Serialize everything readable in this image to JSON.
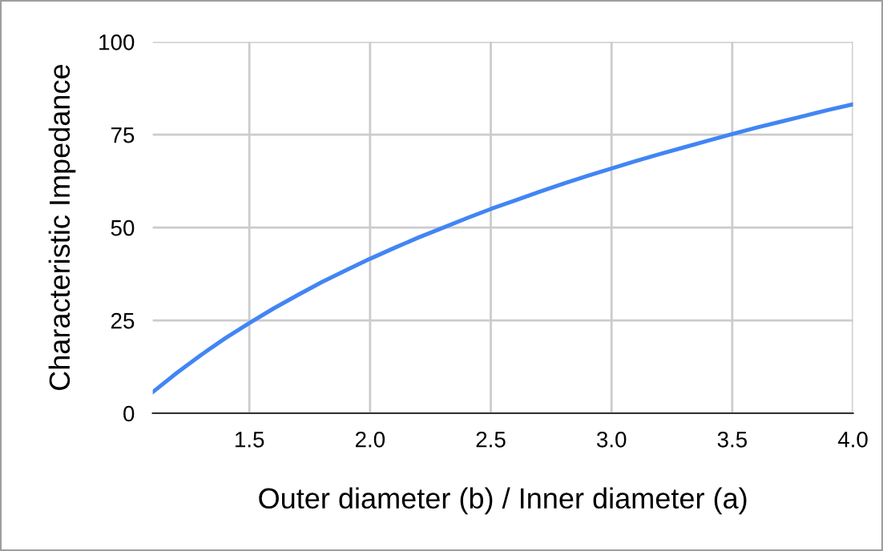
{
  "chart_data": {
    "type": "line",
    "xlabel": "Outer diameter (b) / Inner diameter (a)",
    "ylabel": "Characteristic Impedance",
    "x": [
      1.1,
      1.2,
      1.3,
      1.4,
      1.5,
      1.6,
      1.7,
      1.8,
      1.9,
      2.0,
      2.1,
      2.2,
      2.3,
      2.4,
      2.5,
      2.6,
      2.7,
      2.8,
      2.9,
      3.0,
      3.1,
      3.2,
      3.3,
      3.4,
      3.5,
      3.6,
      3.7,
      3.8,
      3.9,
      4.0
    ],
    "series": [
      {
        "color": "#4285f4",
        "values": [
          5.7,
          10.9,
          15.7,
          20.2,
          24.3,
          28.2,
          31.8,
          35.3,
          38.5,
          41.6,
          44.5,
          47.3,
          49.9,
          52.5,
          55.0,
          57.3,
          59.6,
          61.8,
          63.9,
          65.9,
          67.9,
          69.8,
          71.6,
          73.4,
          75.2,
          76.9,
          78.5,
          80.1,
          81.7,
          83.2
        ]
      }
    ],
    "xlim": [
      1.1,
      4.0
    ],
    "ylim": [
      0,
      100
    ],
    "xticks": [
      {
        "value": 1.5,
        "label": "1.5"
      },
      {
        "value": 2.0,
        "label": "2.0"
      },
      {
        "value": 2.5,
        "label": "2.5"
      },
      {
        "value": 3.0,
        "label": "3.0"
      },
      {
        "value": 3.5,
        "label": "3.5"
      },
      {
        "value": 4.0,
        "label": "4.0"
      }
    ],
    "yticks": [
      0,
      25,
      50,
      75,
      100
    ],
    "grid": true,
    "marker": "none",
    "line_style": "solid"
  }
}
